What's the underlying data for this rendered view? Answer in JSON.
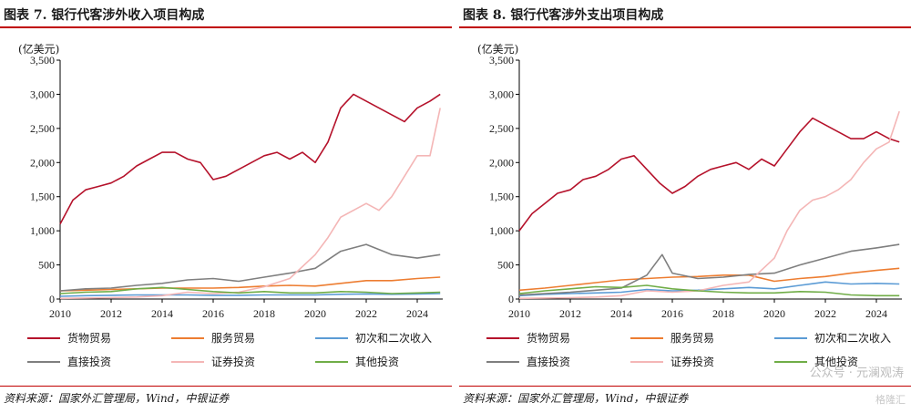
{
  "panels": [
    {
      "title": "图表 7. 银行代客涉外收入项目构成",
      "source": "资料来源：国家外汇管理局，Wind，中银证券"
    },
    {
      "title": "图表 8. 银行代客涉外支出项目构成",
      "source": "资料来源：国家外汇管理局，Wind，中银证券"
    }
  ],
  "watermark": "公众号 · 元澜观涛",
  "watermark_logo": "格隆汇",
  "chart_data": [
    {
      "type": "line",
      "unit_label": "(亿美元)",
      "x_ticks": [
        "2010",
        "2012",
        "2014",
        "2016",
        "2018",
        "2020",
        "2022",
        "2024"
      ],
      "y_ticks": [
        "0",
        "500",
        "1,000",
        "1,500",
        "2,000",
        "2,500",
        "3,000",
        "3,500"
      ],
      "xlim": [
        2010,
        2025
      ],
      "ylim": [
        0,
        3500
      ],
      "grid": false,
      "legend_position": "bottom",
      "series": [
        {
          "name": "货物贸易",
          "color": "#b5122b",
          "points": [
            [
              2010.0,
              1100
            ],
            [
              2010.5,
              1450
            ],
            [
              2011.0,
              1600
            ],
            [
              2011.5,
              1650
            ],
            [
              2012.0,
              1700
            ],
            [
              2012.5,
              1800
            ],
            [
              2013.0,
              1950
            ],
            [
              2013.5,
              2050
            ],
            [
              2014.0,
              2150
            ],
            [
              2014.5,
              2150
            ],
            [
              2015.0,
              2050
            ],
            [
              2015.5,
              2000
            ],
            [
              2016.0,
              1750
            ],
            [
              2016.5,
              1800
            ],
            [
              2017.0,
              1900
            ],
            [
              2017.5,
              2000
            ],
            [
              2018.0,
              2100
            ],
            [
              2018.5,
              2150
            ],
            [
              2019.0,
              2050
            ],
            [
              2019.5,
              2150
            ],
            [
              2020.0,
              2000
            ],
            [
              2020.5,
              2300
            ],
            [
              2021.0,
              2800
            ],
            [
              2021.5,
              3000
            ],
            [
              2022.0,
              2900
            ],
            [
              2022.5,
              2800
            ],
            [
              2023.0,
              2700
            ],
            [
              2023.5,
              2600
            ],
            [
              2024.0,
              2800
            ],
            [
              2024.5,
              2900
            ],
            [
              2024.9,
              3000
            ]
          ]
        },
        {
          "name": "服务贸易",
          "color": "#ed7d31",
          "points": [
            [
              2010.0,
              120
            ],
            [
              2011.0,
              130
            ],
            [
              2012.0,
              140
            ],
            [
              2013.0,
              150
            ],
            [
              2014.0,
              160
            ],
            [
              2015.0,
              160
            ],
            [
              2016.0,
              160
            ],
            [
              2017.0,
              170
            ],
            [
              2018.0,
              190
            ],
            [
              2019.0,
              200
            ],
            [
              2020.0,
              190
            ],
            [
              2021.0,
              230
            ],
            [
              2022.0,
              270
            ],
            [
              2023.0,
              270
            ],
            [
              2024.0,
              300
            ],
            [
              2024.9,
              320
            ]
          ]
        },
        {
          "name": "初次和二次收入",
          "color": "#5b9bd5",
          "points": [
            [
              2010.0,
              40
            ],
            [
              2011.0,
              50
            ],
            [
              2012.0,
              55
            ],
            [
              2013.0,
              60
            ],
            [
              2014.0,
              60
            ],
            [
              2015.0,
              60
            ],
            [
              2016.0,
              55
            ],
            [
              2017.0,
              55
            ],
            [
              2018.0,
              60
            ],
            [
              2019.0,
              60
            ],
            [
              2020.0,
              60
            ],
            [
              2021.0,
              70
            ],
            [
              2022.0,
              75
            ],
            [
              2023.0,
              70
            ],
            [
              2024.0,
              75
            ],
            [
              2024.9,
              80
            ]
          ]
        },
        {
          "name": "直接投资",
          "color": "#7f7f7f",
          "points": [
            [
              2010.0,
              120
            ],
            [
              2011.0,
              150
            ],
            [
              2012.0,
              160
            ],
            [
              2013.0,
              200
            ],
            [
              2014.0,
              230
            ],
            [
              2015.0,
              280
            ],
            [
              2016.0,
              300
            ],
            [
              2017.0,
              260
            ],
            [
              2018.0,
              320
            ],
            [
              2019.0,
              380
            ],
            [
              2020.0,
              450
            ],
            [
              2021.0,
              700
            ],
            [
              2022.0,
              800
            ],
            [
              2023.0,
              650
            ],
            [
              2024.0,
              600
            ],
            [
              2024.9,
              650
            ]
          ]
        },
        {
          "name": "证券投资",
          "color": "#f4b6b6",
          "points": [
            [
              2010.0,
              10
            ],
            [
              2011.0,
              15
            ],
            [
              2012.0,
              20
            ],
            [
              2013.0,
              30
            ],
            [
              2014.0,
              50
            ],
            [
              2015.0,
              100
            ],
            [
              2016.0,
              80
            ],
            [
              2017.0,
              100
            ],
            [
              2018.0,
              180
            ],
            [
              2019.0,
              300
            ],
            [
              2020.0,
              650
            ],
            [
              2020.5,
              900
            ],
            [
              2021.0,
              1200
            ],
            [
              2021.5,
              1300
            ],
            [
              2022.0,
              1400
            ],
            [
              2022.5,
              1300
            ],
            [
              2023.0,
              1500
            ],
            [
              2023.5,
              1800
            ],
            [
              2024.0,
              2100
            ],
            [
              2024.5,
              2100
            ],
            [
              2024.9,
              2800
            ]
          ]
        },
        {
          "name": "其他投资",
          "color": "#70ad47",
          "points": [
            [
              2010.0,
              80
            ],
            [
              2011.0,
              100
            ],
            [
              2012.0,
              110
            ],
            [
              2013.0,
              150
            ],
            [
              2014.0,
              170
            ],
            [
              2015.0,
              140
            ],
            [
              2016.0,
              110
            ],
            [
              2017.0,
              90
            ],
            [
              2018.0,
              110
            ],
            [
              2019.0,
              90
            ],
            [
              2020.0,
              90
            ],
            [
              2021.0,
              110
            ],
            [
              2022.0,
              100
            ],
            [
              2023.0,
              80
            ],
            [
              2024.0,
              90
            ],
            [
              2024.9,
              100
            ]
          ]
        }
      ]
    },
    {
      "type": "line",
      "unit_label": "(亿美元)",
      "x_ticks": [
        "2010",
        "2012",
        "2014",
        "2016",
        "2018",
        "2020",
        "2022",
        "2024"
      ],
      "y_ticks": [
        "0",
        "500",
        "1,000",
        "1,500",
        "2,000",
        "2,500",
        "3,000",
        "3,500"
      ],
      "xlim": [
        2010,
        2025
      ],
      "ylim": [
        0,
        3500
      ],
      "grid": false,
      "legend_position": "bottom",
      "series": [
        {
          "name": "货物贸易",
          "color": "#b5122b",
          "points": [
            [
              2010.0,
              1000
            ],
            [
              2010.5,
              1250
            ],
            [
              2011.0,
              1400
            ],
            [
              2011.5,
              1550
            ],
            [
              2012.0,
              1600
            ],
            [
              2012.5,
              1750
            ],
            [
              2013.0,
              1800
            ],
            [
              2013.5,
              1900
            ],
            [
              2014.0,
              2050
            ],
            [
              2014.5,
              2100
            ],
            [
              2015.0,
              1900
            ],
            [
              2015.5,
              1700
            ],
            [
              2016.0,
              1550
            ],
            [
              2016.5,
              1650
            ],
            [
              2017.0,
              1800
            ],
            [
              2017.5,
              1900
            ],
            [
              2018.0,
              1950
            ],
            [
              2018.5,
              2000
            ],
            [
              2019.0,
              1900
            ],
            [
              2019.5,
              2050
            ],
            [
              2020.0,
              1950
            ],
            [
              2020.5,
              2200
            ],
            [
              2021.0,
              2450
            ],
            [
              2021.5,
              2650
            ],
            [
              2022.0,
              2550
            ],
            [
              2022.5,
              2450
            ],
            [
              2023.0,
              2350
            ],
            [
              2023.5,
              2350
            ],
            [
              2024.0,
              2450
            ],
            [
              2024.5,
              2350
            ],
            [
              2024.9,
              2300
            ]
          ]
        },
        {
          "name": "服务贸易",
          "color": "#ed7d31",
          "points": [
            [
              2010.0,
              130
            ],
            [
              2011.0,
              160
            ],
            [
              2012.0,
              200
            ],
            [
              2013.0,
              240
            ],
            [
              2014.0,
              280
            ],
            [
              2015.0,
              300
            ],
            [
              2016.0,
              320
            ],
            [
              2017.0,
              330
            ],
            [
              2018.0,
              350
            ],
            [
              2019.0,
              350
            ],
            [
              2020.0,
              260
            ],
            [
              2021.0,
              300
            ],
            [
              2022.0,
              330
            ],
            [
              2023.0,
              380
            ],
            [
              2024.0,
              420
            ],
            [
              2024.9,
              450
            ]
          ]
        },
        {
          "name": "初次和二次收入",
          "color": "#5b9bd5",
          "points": [
            [
              2010.0,
              50
            ],
            [
              2011.0,
              70
            ],
            [
              2012.0,
              80
            ],
            [
              2013.0,
              90
            ],
            [
              2014.0,
              100
            ],
            [
              2015.0,
              140
            ],
            [
              2016.0,
              120
            ],
            [
              2017.0,
              130
            ],
            [
              2018.0,
              150
            ],
            [
              2019.0,
              170
            ],
            [
              2020.0,
              150
            ],
            [
              2021.0,
              200
            ],
            [
              2022.0,
              250
            ],
            [
              2023.0,
              220
            ],
            [
              2024.0,
              230
            ],
            [
              2024.9,
              220
            ]
          ]
        },
        {
          "name": "直接投资",
          "color": "#7f7f7f",
          "points": [
            [
              2010.0,
              60
            ],
            [
              2011.0,
              80
            ],
            [
              2012.0,
              100
            ],
            [
              2013.0,
              130
            ],
            [
              2014.0,
              160
            ],
            [
              2015.0,
              350
            ],
            [
              2015.6,
              650
            ],
            [
              2016.0,
              380
            ],
            [
              2017.0,
              300
            ],
            [
              2018.0,
              320
            ],
            [
              2019.0,
              360
            ],
            [
              2020.0,
              380
            ],
            [
              2021.0,
              500
            ],
            [
              2022.0,
              600
            ],
            [
              2023.0,
              700
            ],
            [
              2024.0,
              750
            ],
            [
              2024.9,
              800
            ]
          ]
        },
        {
          "name": "证券投资",
          "color": "#f4b6b6",
          "points": [
            [
              2010.0,
              10
            ],
            [
              2011.0,
              15
            ],
            [
              2012.0,
              20
            ],
            [
              2013.0,
              30
            ],
            [
              2014.0,
              50
            ],
            [
              2015.0,
              120
            ],
            [
              2016.0,
              100
            ],
            [
              2017.0,
              120
            ],
            [
              2018.0,
              200
            ],
            [
              2019.0,
              250
            ],
            [
              2020.0,
              600
            ],
            [
              2020.5,
              1000
            ],
            [
              2021.0,
              1300
            ],
            [
              2021.5,
              1450
            ],
            [
              2022.0,
              1500
            ],
            [
              2022.5,
              1600
            ],
            [
              2023.0,
              1750
            ],
            [
              2023.5,
              2000
            ],
            [
              2024.0,
              2200
            ],
            [
              2024.5,
              2300
            ],
            [
              2024.9,
              2750
            ]
          ]
        },
        {
          "name": "其他投资",
          "color": "#70ad47",
          "points": [
            [
              2010.0,
              80
            ],
            [
              2011.0,
              120
            ],
            [
              2012.0,
              150
            ],
            [
              2013.0,
              180
            ],
            [
              2014.0,
              170
            ],
            [
              2015.0,
              200
            ],
            [
              2016.0,
              150
            ],
            [
              2017.0,
              120
            ],
            [
              2018.0,
              100
            ],
            [
              2019.0,
              90
            ],
            [
              2020.0,
              90
            ],
            [
              2021.0,
              110
            ],
            [
              2022.0,
              100
            ],
            [
              2023.0,
              60
            ],
            [
              2024.0,
              50
            ],
            [
              2024.9,
              50
            ]
          ]
        }
      ]
    }
  ]
}
